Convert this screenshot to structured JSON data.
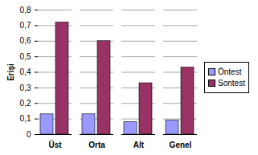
{
  "chart_data": {
    "type": "bar",
    "y_label": "Erişi",
    "categories": [
      "Üst",
      "Orta",
      "Alt",
      "Genel"
    ],
    "series": [
      {
        "name": "Öntest",
        "color": "#9999ff",
        "values": [
          0.13,
          0.13,
          0.08,
          0.09
        ]
      },
      {
        "name": "Sontest",
        "color": "#993366",
        "values": [
          0.72,
          0.6,
          0.33,
          0.43
        ]
      }
    ],
    "ylim": [
      0,
      0.8
    ],
    "yticks": [
      0,
      {
        "value": 0.1,
        "label": "0,1"
      },
      {
        "value": 0.2,
        "label": "0,2"
      },
      {
        "value": 0.3,
        "label": "0,3"
      },
      {
        "value": 0.4,
        "label": "0,4"
      },
      {
        "value": 0.5,
        "label": "0,5"
      },
      {
        "value": 0.6,
        "label": "0,6"
      },
      {
        "value": 0.7,
        "label": "0,7"
      },
      {
        "value": 0.8,
        "label": "0,8"
      }
    ],
    "grid": true,
    "legend": "right"
  }
}
